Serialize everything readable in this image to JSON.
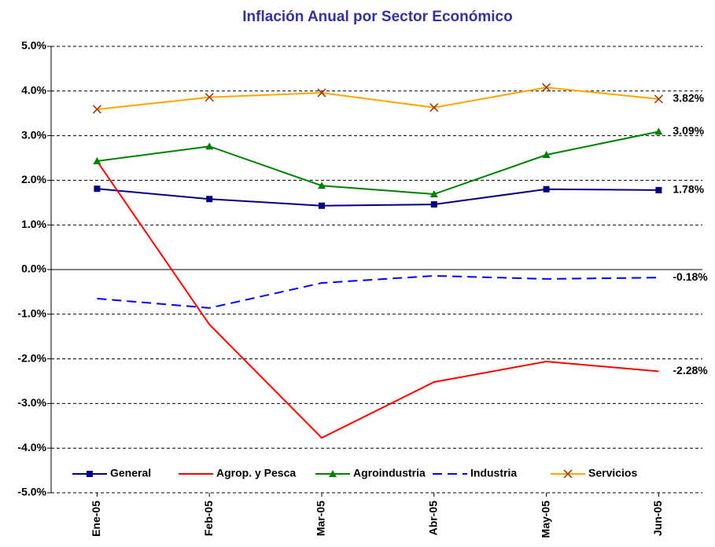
{
  "chart_data": {
    "type": "line",
    "title": "Inflación Anual por Sector Económico",
    "categories": [
      "Ene-05",
      "Feb-05",
      "Mar-05",
      "Abr-05",
      "May-05",
      "Jun-05"
    ],
    "series": [
      {
        "name": "General",
        "color": "#000080",
        "marker": "square",
        "values": [
          1.81,
          1.58,
          1.43,
          1.46,
          1.8,
          1.78
        ],
        "value_labels": [
          null,
          null,
          null,
          null,
          null,
          "1.78%"
        ]
      },
      {
        "name": "Agrop. y Pesca",
        "color": "#ff0000",
        "marker": "none",
        "values": [
          2.43,
          -1.23,
          -3.77,
          -2.52,
          -2.06,
          -2.28
        ],
        "value_labels": [
          null,
          null,
          null,
          null,
          null,
          "-2.28%"
        ]
      },
      {
        "name": "Agroindustria",
        "color": "#008000",
        "marker": "triangle",
        "values": [
          2.43,
          2.76,
          1.88,
          1.69,
          2.57,
          3.09
        ],
        "value_labels": [
          null,
          null,
          null,
          null,
          null,
          "3.09%"
        ]
      },
      {
        "name": "Industria",
        "color": "#0000ff",
        "marker": "none",
        "dash": true,
        "values": [
          -0.65,
          -0.86,
          -0.3,
          -0.14,
          -0.21,
          -0.18
        ],
        "value_labels": [
          null,
          null,
          null,
          null,
          null,
          "-0.18%"
        ]
      },
      {
        "name": "Servicios",
        "color": "#ffa500",
        "marker": "x",
        "marker_color": "#993300",
        "values": [
          3.59,
          3.86,
          3.96,
          3.63,
          4.08,
          3.82
        ],
        "value_labels": [
          null,
          null,
          null,
          null,
          null,
          "3.82%"
        ]
      }
    ],
    "ylim": [
      -5,
      5
    ],
    "yticks": [
      {
        "value": -5,
        "label": "-5.0%"
      },
      {
        "value": -4,
        "label": "-4.0%"
      },
      {
        "value": -3,
        "label": "-3.0%"
      },
      {
        "value": -2,
        "label": "-2.0%"
      },
      {
        "value": -1,
        "label": "-1.0%"
      },
      {
        "value": 0,
        "label": "0.0%"
      },
      {
        "value": 1,
        "label": "1.0%"
      },
      {
        "value": 2,
        "label": "2.0%"
      },
      {
        "value": 3,
        "label": "3.0%"
      },
      {
        "value": 4,
        "label": "4.0%"
      },
      {
        "value": 5,
        "label": "5.0%"
      }
    ],
    "grid": true,
    "legend": "bottom"
  }
}
